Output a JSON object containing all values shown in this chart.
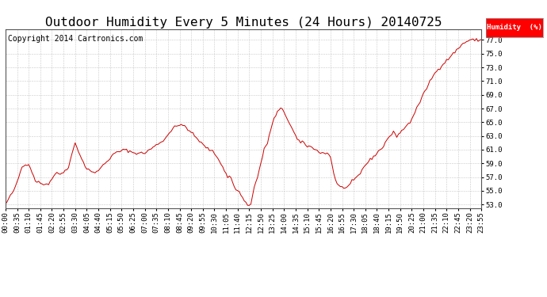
{
  "title": "Outdoor Humidity Every 5 Minutes (24 Hours) 20140725",
  "copyright": "Copyright 2014 Cartronics.com",
  "legend_label": "Humidity  (%)",
  "legend_bg": "#FF0000",
  "legend_fg": "#FFFFFF",
  "line_color": "#CC0000",
  "bg_color": "#FFFFFF",
  "plot_bg": "#FFFFFF",
  "grid_color": "#BBBBBB",
  "ylim": [
    52.5,
    78.5
  ],
  "yticks": [
    53.0,
    55.0,
    57.0,
    59.0,
    61.0,
    63.0,
    65.0,
    67.0,
    69.0,
    71.0,
    73.0,
    75.0,
    77.0
  ],
  "xtick_interval": 7,
  "title_fontsize": 11.5,
  "tick_fontsize": 6.5,
  "copyright_fontsize": 7,
  "keypoints_x": [
    0,
    6,
    10,
    14,
    18,
    22,
    26,
    30,
    34,
    38,
    42,
    48,
    54,
    60,
    66,
    72,
    78,
    84,
    90,
    96,
    102,
    106,
    108,
    114,
    120,
    126,
    130,
    132,
    134,
    136,
    138,
    140,
    142,
    144,
    146,
    148,
    150,
    152,
    154,
    156,
    158,
    160,
    162,
    164,
    166,
    168,
    170,
    172,
    174,
    176,
    178,
    180,
    182,
    184,
    186,
    188,
    190,
    192,
    194,
    196,
    198,
    200,
    202,
    204,
    206,
    208,
    210,
    212,
    214,
    216,
    218,
    220,
    222,
    224,
    226,
    228,
    230,
    232,
    234,
    236,
    238,
    240,
    244,
    248,
    252,
    256,
    260,
    264,
    268,
    272,
    276,
    280,
    284,
    287
  ],
  "keypoints_y": [
    53.0,
    55.5,
    58.5,
    59.0,
    56.5,
    56.0,
    56.0,
    57.5,
    57.5,
    58.5,
    62.0,
    58.5,
    57.5,
    59.0,
    60.5,
    61.0,
    60.5,
    60.5,
    61.5,
    62.5,
    64.5,
    64.5,
    64.5,
    63.0,
    61.5,
    60.5,
    59.0,
    58.0,
    57.0,
    57.0,
    55.5,
    55.0,
    54.5,
    53.5,
    53.0,
    53.0,
    55.5,
    57.0,
    59.0,
    61.0,
    62.0,
    64.0,
    65.5,
    66.5,
    67.0,
    66.5,
    65.5,
    64.5,
    63.5,
    62.5,
    62.0,
    62.0,
    61.5,
    61.5,
    61.0,
    61.0,
    60.5,
    60.5,
    60.5,
    60.0,
    57.5,
    56.0,
    55.5,
    55.5,
    55.5,
    56.0,
    56.5,
    57.0,
    57.5,
    58.5,
    59.0,
    59.5,
    60.0,
    60.5,
    61.0,
    61.5,
    62.5,
    63.0,
    63.5,
    63.0,
    63.5,
    64.0,
    65.0,
    67.0,
    69.0,
    71.0,
    72.5,
    73.5,
    74.5,
    75.5,
    76.5,
    77.0,
    77.0,
    77.0
  ]
}
